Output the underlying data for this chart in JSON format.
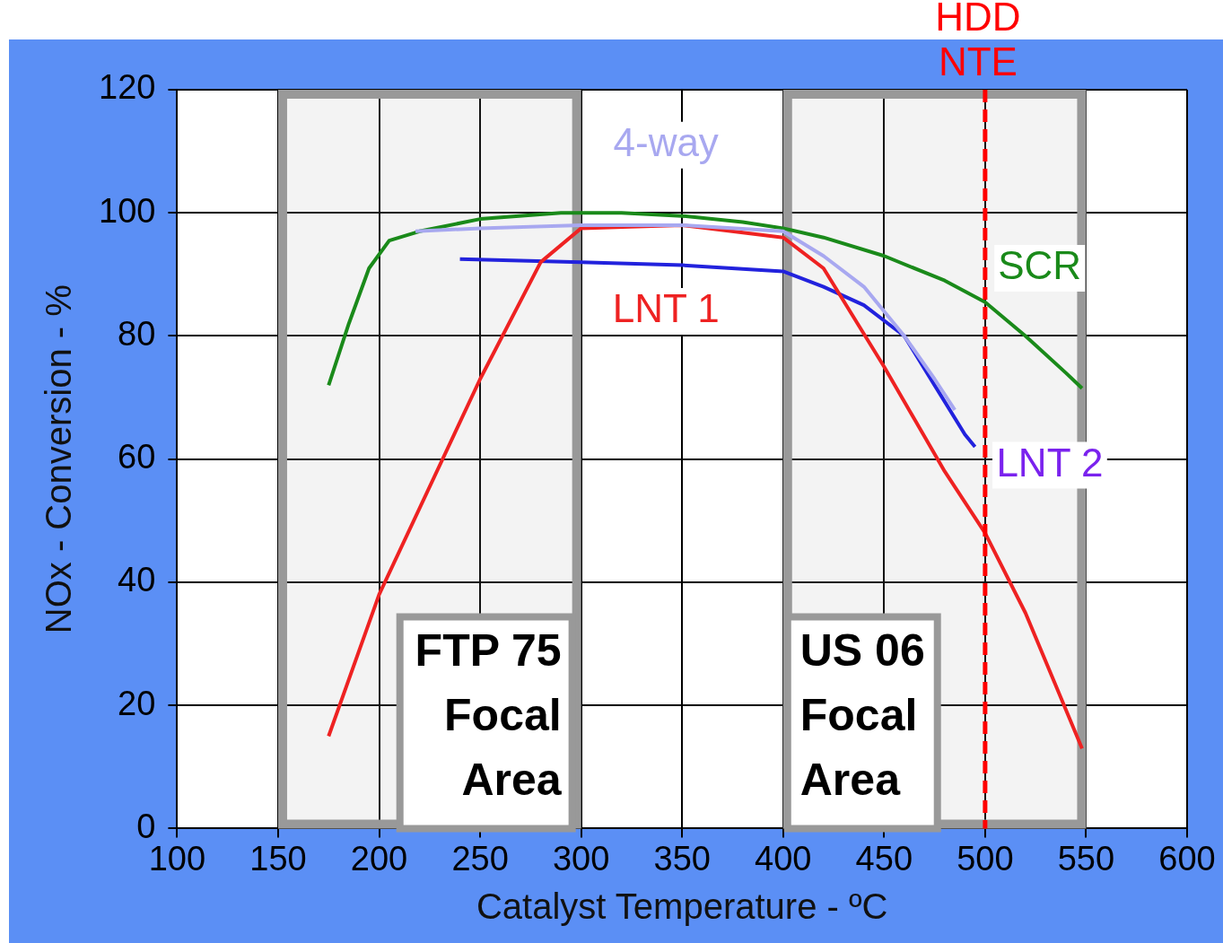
{
  "chart_data": {
    "type": "line",
    "xlabel": "Catalyst Temperature - ºC",
    "ylabel": "NOx - Conversion - %",
    "xlim": [
      100,
      600
    ],
    "xticks": [
      100,
      150,
      200,
      250,
      300,
      350,
      400,
      450,
      500,
      550,
      600
    ],
    "ylim": [
      0,
      120
    ],
    "yticks": [
      0,
      20,
      40,
      60,
      80,
      100,
      120
    ],
    "grid": true,
    "legend": false,
    "marker": "none",
    "line_style": "solid",
    "series": [
      {
        "name": "4-way",
        "color": "#a8a8f0",
        "x": [
          218,
          250,
          300,
          350,
          400,
          420,
          440,
          460,
          475,
          485
        ],
        "values": [
          97,
          97.5,
          98,
          98,
          97,
          93,
          88,
          80,
          73,
          68
        ]
      },
      {
        "name": "SCR",
        "color": "#1a8a1a",
        "x": [
          175,
          185,
          195,
          205,
          220,
          250,
          290,
          320,
          350,
          380,
          400,
          420,
          450,
          480,
          500,
          520,
          540,
          548
        ],
        "values": [
          72,
          82,
          91,
          95.5,
          97,
          99,
          100,
          100,
          99.5,
          98.5,
          97.5,
          96,
          93,
          89,
          85.5,
          80,
          74,
          71.5
        ]
      },
      {
        "name": "LNT 1",
        "color": "#ee2222",
        "x": [
          175,
          200,
          250,
          280,
          300,
          350,
          400,
          420,
          450,
          480,
          500,
          520,
          548
        ],
        "values": [
          15,
          38,
          73,
          92,
          97.5,
          98,
          96,
          91,
          75,
          58,
          48,
          35,
          13
        ]
      },
      {
        "name": "LNT 2",
        "color": "#2222dd",
        "x": [
          240,
          300,
          350,
          400,
          420,
          440,
          460,
          475,
          490,
          495
        ],
        "values": [
          92.5,
          92,
          91.5,
          90.5,
          88,
          85,
          80,
          72,
          64,
          62
        ]
      }
    ],
    "bands": [
      {
        "axis": "x",
        "from": 150,
        "to": 300,
        "label": "FTP 75\nFocal\nArea",
        "color": "#999999"
      },
      {
        "axis": "x",
        "from": 400,
        "to": 550,
        "label": "US 06\nFocal\nArea",
        "color": "#999999"
      }
    ],
    "ref_lines": [
      {
        "axis": "x",
        "value": 500,
        "label": "HDD\nNTE",
        "color": "#ff0000",
        "line_style": "dashed"
      }
    ]
  }
}
